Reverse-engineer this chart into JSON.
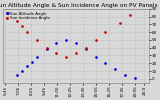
{
  "title": "Sun Altitude Angle & Sun Incidence Angle on PV Panels",
  "bg_color": "#d8d8d8",
  "plot_bg": "#d8d8d8",
  "blue_label": "Sun Altitude Angle",
  "red_label": "Sun Incidence Angle",
  "blue_color": "#0000dd",
  "red_color": "#cc0000",
  "blue_x": [
    7.0,
    7.5,
    8.0,
    8.5,
    9.0,
    10.0,
    11.0,
    12.0,
    13.0,
    14.0,
    15.0,
    16.0,
    17.0,
    18.0,
    19.0
  ],
  "blue_y": [
    5,
    10,
    16,
    22,
    28,
    38,
    46,
    50,
    46,
    38,
    28,
    20,
    12,
    5,
    1
  ],
  "red_x": [
    6.0,
    7.0,
    7.5,
    8.0,
    9.0,
    10.0,
    11.0,
    12.0,
    13.0,
    14.0,
    15.0,
    16.0,
    17.5,
    18.5
  ],
  "red_y": [
    85,
    75,
    68,
    60,
    50,
    40,
    33,
    28,
    33,
    40,
    50,
    60,
    72,
    82
  ],
  "ylim": [
    -5,
    90
  ],
  "xlim": [
    5.5,
    20.5
  ],
  "yticks": [
    0,
    10,
    20,
    30,
    40,
    50,
    60,
    70,
    80,
    90
  ],
  "xtick_vals": [
    5.75,
    7.08,
    8.42,
    9.75,
    11.08,
    12.42,
    13.75,
    15.08,
    16.42,
    17.75,
    19.08,
    20.0
  ],
  "xtick_labels": [
    "5:45",
    "7:05",
    "8:25",
    "9:45",
    "11:05",
    "12:25",
    "13:45",
    "15:05",
    "16:25",
    "17:45",
    "19:05",
    "20:0"
  ],
  "title_fontsize": 4.2,
  "tick_fontsize": 3.0,
  "legend_fontsize": 2.8,
  "marker_size": 1.8
}
